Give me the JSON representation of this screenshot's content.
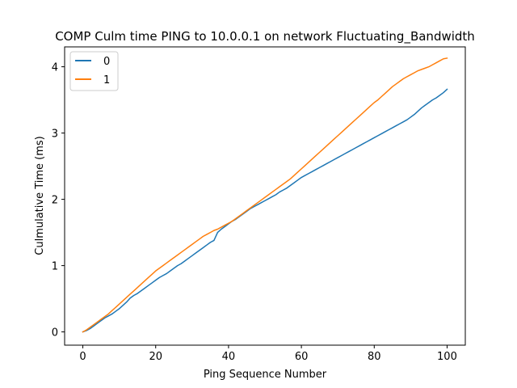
{
  "chart_data": {
    "type": "line",
    "title": "COMP Culm time PING to 10.0.0.1 on network Fluctuating_Bandwidth",
    "xlabel": "Ping Sequence Number",
    "ylabel": "Culmulative Time (ms)",
    "xlim": [
      -5,
      105
    ],
    "ylim": [
      -0.2,
      4.3
    ],
    "xticks": [
      0,
      20,
      40,
      60,
      80,
      100
    ],
    "yticks": [
      0,
      1,
      2,
      3,
      4
    ],
    "grid": false,
    "legend": "top-left",
    "series": [
      {
        "name": "0",
        "color": "#1f77b4",
        "x": [
          0,
          1,
          2,
          3,
          4,
          5,
          6,
          7,
          8,
          9,
          10,
          11,
          12,
          13,
          14,
          15,
          16,
          17,
          18,
          19,
          20,
          21,
          22,
          23,
          24,
          25,
          26,
          27,
          28,
          29,
          30,
          31,
          32,
          33,
          34,
          35,
          36,
          37,
          38,
          39,
          40,
          41,
          42,
          43,
          44,
          45,
          46,
          47,
          48,
          49,
          50,
          51,
          52,
          53,
          54,
          55,
          56,
          57,
          58,
          59,
          60,
          61,
          62,
          63,
          64,
          65,
          66,
          67,
          68,
          69,
          70,
          71,
          72,
          73,
          74,
          75,
          76,
          77,
          78,
          79,
          80,
          81,
          82,
          83,
          84,
          85,
          86,
          87,
          88,
          89,
          90,
          91,
          92,
          93,
          94,
          95,
          96,
          97,
          98,
          99,
          100
        ],
        "values": [
          0.0,
          0.02,
          0.05,
          0.09,
          0.13,
          0.17,
          0.21,
          0.24,
          0.27,
          0.31,
          0.35,
          0.4,
          0.45,
          0.51,
          0.55,
          0.58,
          0.62,
          0.66,
          0.7,
          0.74,
          0.78,
          0.82,
          0.85,
          0.88,
          0.92,
          0.96,
          1.0,
          1.03,
          1.07,
          1.11,
          1.15,
          1.19,
          1.23,
          1.27,
          1.31,
          1.35,
          1.38,
          1.5,
          1.55,
          1.59,
          1.63,
          1.67,
          1.7,
          1.74,
          1.78,
          1.82,
          1.86,
          1.89,
          1.92,
          1.95,
          1.98,
          2.01,
          2.04,
          2.07,
          2.11,
          2.14,
          2.17,
          2.21,
          2.25,
          2.29,
          2.33,
          2.36,
          2.39,
          2.42,
          2.45,
          2.48,
          2.51,
          2.54,
          2.57,
          2.6,
          2.63,
          2.66,
          2.69,
          2.72,
          2.75,
          2.78,
          2.81,
          2.84,
          2.87,
          2.9,
          2.93,
          2.96,
          2.99,
          3.02,
          3.05,
          3.08,
          3.11,
          3.14,
          3.17,
          3.2,
          3.24,
          3.28,
          3.33,
          3.38,
          3.42,
          3.46,
          3.5,
          3.53,
          3.57,
          3.61,
          3.66
        ]
      },
      {
        "name": "1",
        "color": "#ff7f0e",
        "x": [
          0,
          1,
          2,
          3,
          4,
          5,
          6,
          7,
          8,
          9,
          10,
          11,
          12,
          13,
          14,
          15,
          16,
          17,
          18,
          19,
          20,
          21,
          22,
          23,
          24,
          25,
          26,
          27,
          28,
          29,
          30,
          31,
          32,
          33,
          34,
          35,
          36,
          37,
          38,
          39,
          40,
          41,
          42,
          43,
          44,
          45,
          46,
          47,
          48,
          49,
          50,
          51,
          52,
          53,
          54,
          55,
          56,
          57,
          58,
          59,
          60,
          61,
          62,
          63,
          64,
          65,
          66,
          67,
          68,
          69,
          70,
          71,
          72,
          73,
          74,
          75,
          76,
          77,
          78,
          79,
          80,
          81,
          82,
          83,
          84,
          85,
          86,
          87,
          88,
          89,
          90,
          91,
          92,
          93,
          94,
          95,
          96,
          97,
          98,
          99,
          100
        ],
        "values": [
          0.0,
          0.03,
          0.07,
          0.11,
          0.15,
          0.19,
          0.23,
          0.27,
          0.32,
          0.37,
          0.42,
          0.47,
          0.52,
          0.57,
          0.62,
          0.67,
          0.72,
          0.77,
          0.82,
          0.87,
          0.92,
          0.96,
          1.0,
          1.04,
          1.08,
          1.12,
          1.16,
          1.2,
          1.24,
          1.28,
          1.32,
          1.36,
          1.4,
          1.44,
          1.47,
          1.5,
          1.53,
          1.55,
          1.58,
          1.61,
          1.64,
          1.67,
          1.71,
          1.75,
          1.79,
          1.83,
          1.87,
          1.91,
          1.95,
          1.99,
          2.03,
          2.07,
          2.11,
          2.15,
          2.19,
          2.23,
          2.27,
          2.31,
          2.36,
          2.41,
          2.46,
          2.51,
          2.56,
          2.61,
          2.66,
          2.71,
          2.76,
          2.81,
          2.86,
          2.91,
          2.96,
          3.01,
          3.06,
          3.11,
          3.16,
          3.21,
          3.26,
          3.31,
          3.36,
          3.41,
          3.46,
          3.5,
          3.55,
          3.6,
          3.65,
          3.7,
          3.74,
          3.78,
          3.82,
          3.85,
          3.88,
          3.91,
          3.94,
          3.96,
          3.98,
          4.0,
          4.03,
          4.06,
          4.09,
          4.12,
          4.13
        ]
      }
    ]
  }
}
